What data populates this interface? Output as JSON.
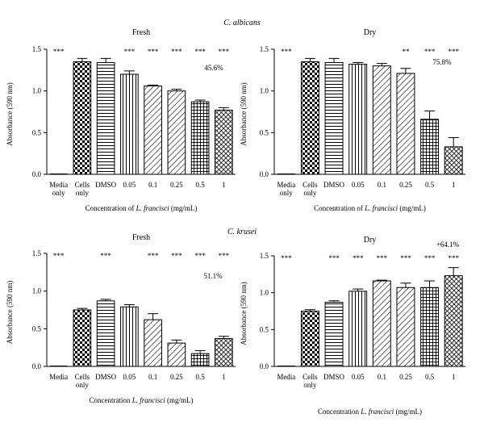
{
  "figure": {
    "group_titles": [
      {
        "text": "C. albicans",
        "italic": true
      },
      {
        "text": "C. krusei",
        "italic": true
      }
    ]
  },
  "chart_data": [
    {
      "type": "bar",
      "panel": "albicans-fresh",
      "title": "Fresh",
      "ylabel": "Absorbance (590 nm)",
      "xlabel": {
        "prefix": "Concentration of ",
        "species": "L. francisci",
        "suffix": " (mg/mL)"
      },
      "ylim": [
        0,
        1.5
      ],
      "yticks": [
        "0.0",
        "0.5",
        "1.0",
        "1.5"
      ],
      "categories": [
        [
          "Media",
          "only"
        ],
        [
          "Cells",
          "only"
        ],
        [
          "DMSO"
        ],
        [
          "0.05"
        ],
        [
          "0.1"
        ],
        [
          "0.25"
        ],
        [
          "0.5"
        ],
        [
          "1"
        ]
      ],
      "values": [
        0.0,
        1.35,
        1.34,
        1.2,
        1.06,
        1.0,
        0.87,
        0.77
      ],
      "errors": [
        0.01,
        0.04,
        0.05,
        0.04,
        0.01,
        0.02,
        0.02,
        0.03
      ],
      "patterns": [
        "none",
        "checker",
        "hstripe",
        "vstripe",
        "diag",
        "diag",
        "grid",
        "diamond"
      ],
      "significance": [
        "***",
        "",
        "",
        "***",
        "***",
        "***",
        "***",
        "***"
      ],
      "annotation": "45.6%"
    },
    {
      "type": "bar",
      "panel": "albicans-dry",
      "title": "Dry",
      "ylabel": "Absorbance (590 nm)",
      "xlabel": {
        "prefix": "Concentration of ",
        "species": "L. francisci",
        "suffix": " (mg/mL)"
      },
      "ylim": [
        0,
        1.5
      ],
      "yticks": [
        "0.0",
        "0.5",
        "1.0",
        "1.5"
      ],
      "categories": [
        [
          "Media",
          "only"
        ],
        [
          "Cells",
          "only"
        ],
        [
          "DMSO"
        ],
        [
          "0.05"
        ],
        [
          "0.1"
        ],
        [
          "0.25"
        ],
        [
          "0.5"
        ],
        [
          "1"
        ]
      ],
      "values": [
        0.0,
        1.35,
        1.34,
        1.32,
        1.3,
        1.21,
        0.66,
        0.33
      ],
      "errors": [
        0.01,
        0.04,
        0.05,
        0.02,
        0.03,
        0.06,
        0.1,
        0.11
      ],
      "patterns": [
        "none",
        "checker",
        "hstripe",
        "vstripe",
        "diag",
        "diag",
        "grid",
        "diamond"
      ],
      "significance": [
        "***",
        "",
        "",
        "",
        "",
        "**",
        "***",
        "***"
      ],
      "annotation": "75.8%"
    },
    {
      "type": "bar",
      "panel": "krusei-fresh",
      "title": "Fresh",
      "ylabel": "Absorbance (590 nm)",
      "xlabel": {
        "prefix": "Concentration ",
        "species": "L. francisci",
        "suffix": " (mg/mL)"
      },
      "ylim": [
        0,
        1.5
      ],
      "yticks": [
        "0.0",
        "0.5",
        "1.0",
        "1.5"
      ],
      "categories": [
        [
          "Media"
        ],
        [
          "Cells",
          "only"
        ],
        [
          "DMSO"
        ],
        [
          "0.05"
        ],
        [
          "0.1"
        ],
        [
          "0.25"
        ],
        [
          "0.5"
        ],
        [
          "1"
        ]
      ],
      "values": [
        0.0,
        0.75,
        0.87,
        0.79,
        0.62,
        0.31,
        0.17,
        0.37
      ],
      "errors": [
        0.0,
        0.02,
        0.02,
        0.03,
        0.08,
        0.04,
        0.04,
        0.03
      ],
      "patterns": [
        "none",
        "checker",
        "hstripe",
        "vstripe",
        "diag",
        "diag",
        "grid",
        "diamond"
      ],
      "significance": [
        "***",
        "",
        "***",
        "",
        "***",
        "***",
        "***",
        "***"
      ],
      "annotation": "51.1%"
    },
    {
      "type": "bar",
      "panel": "krusei-dry",
      "title": "Dry",
      "ylabel": "Absorbance (590 nm)",
      "xlabel": {
        "prefix": "Concentration ",
        "species": "L. francisci",
        "suffix": " (mg/mL)"
      },
      "ylim": [
        0,
        1.5
      ],
      "yticks": [
        "0.0",
        "0.5",
        "1.0",
        "1.5"
      ],
      "categories": [
        [
          "Media"
        ],
        [
          "Cells",
          "only"
        ],
        [
          "DMSO"
        ],
        [
          "0.05"
        ],
        [
          "0.1"
        ],
        [
          "0.25"
        ],
        [
          "0.5"
        ],
        [
          "1"
        ]
      ],
      "values": [
        0.0,
        0.75,
        0.87,
        1.02,
        1.16,
        1.07,
        1.07,
        1.23
      ],
      "errors": [
        0.0,
        0.02,
        0.02,
        0.03,
        0.01,
        0.06,
        0.09,
        0.11
      ],
      "patterns": [
        "none",
        "checker",
        "hstripe",
        "vstripe",
        "diag",
        "diag",
        "grid",
        "diamond"
      ],
      "significance": [
        "***",
        "",
        "***",
        "***",
        "***",
        "***",
        "***",
        "***"
      ],
      "annotation": "+64.1%"
    }
  ]
}
